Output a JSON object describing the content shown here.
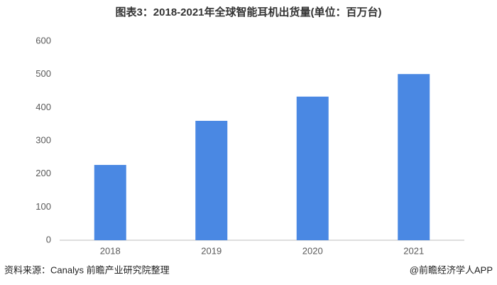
{
  "chart_data": {
    "type": "bar",
    "title": "图表3：2018-2021年全球智能耳机出货量(单位：百万台)",
    "categories": [
      "2018",
      "2019",
      "2020",
      "2021"
    ],
    "values": [
      227,
      360,
      433,
      501
    ],
    "color": "#4a88e3",
    "ylim": [
      0,
      600
    ],
    "yticks": [
      0,
      100,
      200,
      300,
      400,
      500,
      600
    ],
    "grid": false
  },
  "footer": {
    "source": "资料来源：Canalys 前瞻产业研究院整理",
    "credit": "@前瞻经济学人APP"
  }
}
